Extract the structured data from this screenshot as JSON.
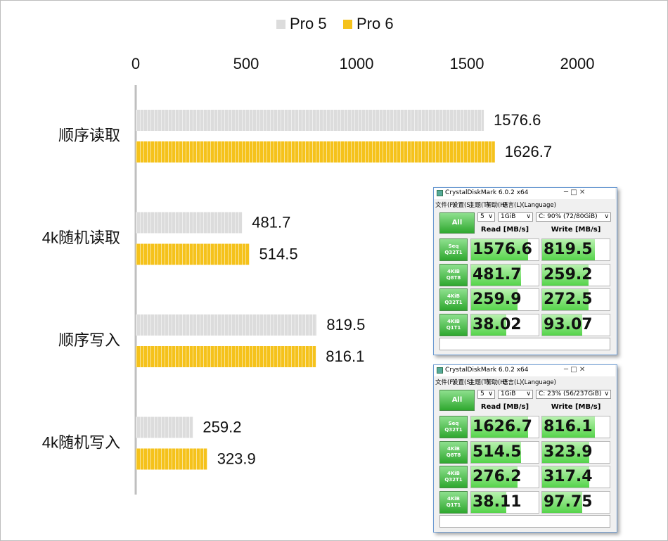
{
  "chart_data": {
    "type": "bar",
    "orientation": "horizontal",
    "categories": [
      "顺序读取",
      "4k随机读取",
      "顺序写入",
      "4k随机写入"
    ],
    "series": [
      {
        "name": "Pro 5",
        "color": "#dcdcdc",
        "values": [
          1576.6,
          481.7,
          819.5,
          259.2
        ]
      },
      {
        "name": "Pro 6",
        "color": "#f5c21b",
        "values": [
          1626.7,
          514.5,
          816.1,
          323.9
        ]
      }
    ],
    "xlim": [
      0,
      2000
    ],
    "xticks": [
      0,
      500,
      1000,
      1500,
      2000
    ],
    "legend": "top"
  },
  "screenshots": [
    {
      "title": "CrystalDiskMark 6.0.2 x64",
      "menu": [
        "文件(F)",
        "设置(S)",
        "主题(T)",
        "帮助(H)",
        "语言(L)(Language)"
      ],
      "count": "5",
      "size": "1GiB",
      "drive": "C: 90% (72/80GiB)",
      "button": "All",
      "headers": [
        "Read [MB/s]",
        "Write [MB/s]"
      ],
      "rows": [
        {
          "label": [
            "Seq",
            "Q32T1"
          ],
          "read": 1576.6,
          "write": 819.5
        },
        {
          "label": [
            "4KiB",
            "Q8T8"
          ],
          "read": 481.7,
          "write": 259.2
        },
        {
          "label": [
            "4KiB",
            "Q32T1"
          ],
          "read": 259.9,
          "write": 272.5
        },
        {
          "label": [
            "4KiB",
            "Q1T1"
          ],
          "read": 38.02,
          "write": 93.07
        }
      ]
    },
    {
      "title": "CrystalDiskMark 6.0.2 x64",
      "menu": [
        "文件(F)",
        "设置(S)",
        "主题(T)",
        "帮助(H)",
        "语言(L)(Language)"
      ],
      "count": "5",
      "size": "1GiB",
      "drive": "C: 23% (56/237GiB)",
      "button": "All",
      "headers": [
        "Read [MB/s]",
        "Write [MB/s]"
      ],
      "rows": [
        {
          "label": [
            "Seq",
            "Q32T1"
          ],
          "read": 1626.7,
          "write": 816.1
        },
        {
          "label": [
            "4KiB",
            "Q8T8"
          ],
          "read": 514.5,
          "write": 323.9
        },
        {
          "label": [
            "4KiB",
            "Q32T1"
          ],
          "read": 276.2,
          "write": 317.4
        },
        {
          "label": [
            "4KiB",
            "Q1T1"
          ],
          "read": 38.11,
          "write": 97.75
        }
      ]
    }
  ]
}
